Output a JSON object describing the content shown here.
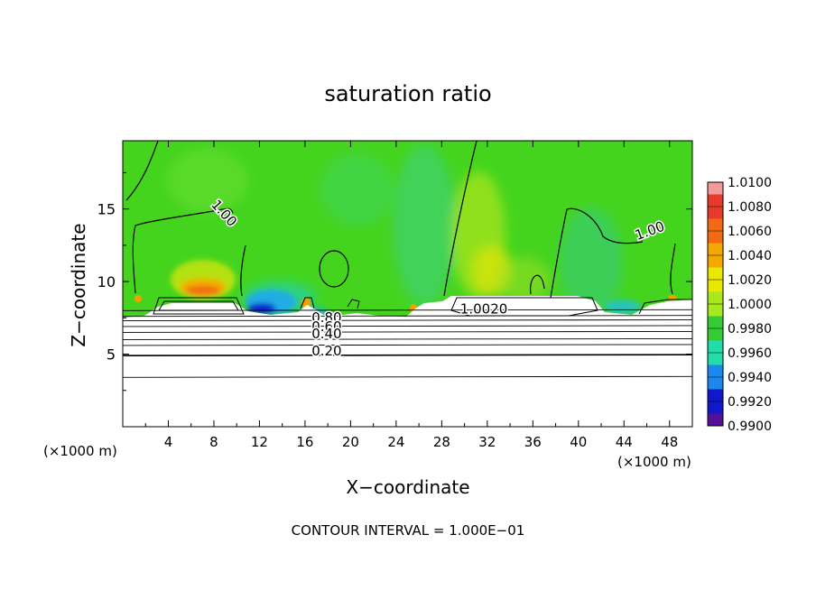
{
  "chart_data": {
    "type": "heatmap",
    "title": "saturation ratio",
    "xlabel": "X−coordinate",
    "ylabel": "Z−coordinate",
    "x_units_left": "(×1000 m)",
    "x_units_right": "(×1000 m)",
    "xlim": [
      0,
      50
    ],
    "ylim": [
      0,
      19.7
    ],
    "x_ticks": [
      4,
      8,
      12,
      16,
      20,
      24,
      28,
      32,
      36,
      40,
      44,
      48
    ],
    "y_ticks": [
      5,
      10,
      15
    ],
    "footer": "CONTOUR INTERVAL = 1.000E−01",
    "colorbar": {
      "labels": [
        "1.0100",
        "1.0080",
        "1.0060",
        "1.0040",
        "1.0020",
        "1.0000",
        "0.9980",
        "0.9960",
        "0.9940",
        "0.9920",
        "0.9900"
      ],
      "colors": [
        "#f39a9a",
        "#e83a2a",
        "#f36a12",
        "#f5a800",
        "#e8e800",
        "#a8e81e",
        "#33cc33",
        "#22ddaa",
        "#1a88ee",
        "#1118cc",
        "#55109a"
      ]
    },
    "contour_labels": [
      {
        "text": "1.00",
        "x": 8.6,
        "z": 14.5,
        "angle": 48
      },
      {
        "text": "1.00",
        "x": 46.4,
        "z": 13.2,
        "angle": -20
      },
      {
        "text": "0.80",
        "x": 17.9,
        "z": 7.2,
        "angle": 0
      },
      {
        "text": "0.60",
        "x": 17.9,
        "z": 6.6,
        "angle": 0
      },
      {
        "text": "0.40",
        "x": 17.9,
        "z": 6.1,
        "angle": 0
      },
      {
        "text": "0.20",
        "x": 17.9,
        "z": 4.9,
        "angle": 0
      },
      {
        "text": "1.0020",
        "x": 31.7,
        "z": 7.8,
        "angle": 0
      }
    ],
    "contour_levels_below_cloud_z": [
      8.0,
      7.6,
      7.3,
      6.9,
      6.5,
      6.0,
      5.6,
      4.9,
      3.4
    ],
    "background_value": 1.0,
    "notes": "Field mostly ~1.000 (green) above z≈8; white (subsaturated) below with horizontal contours from 0.20 to 0.80; local maxima ~1.006 near x≈7, z≈9.6; minima ~0.993 near x≈14, z≈8."
  }
}
